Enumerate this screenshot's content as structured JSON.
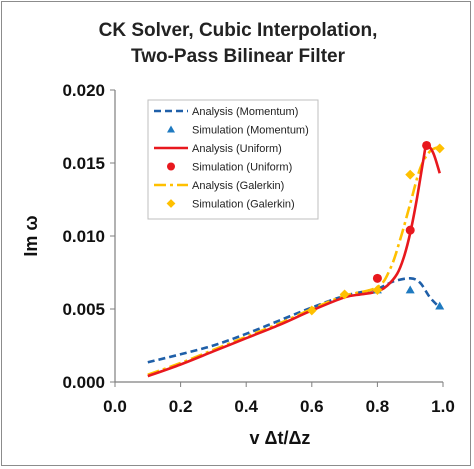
{
  "chart_data": {
    "type": "line",
    "title_lines": [
      "CK Solver, Cubic Interpolation,",
      "Two-Pass Bilinear Filter"
    ],
    "xlabel": "v Δt/Δz",
    "ylabel": "Im ω",
    "xlim": [
      0.0,
      1.0
    ],
    "ylim": [
      0.0,
      0.02
    ],
    "x_ticks": [
      "0.0",
      "0.2",
      "0.4",
      "0.6",
      "0.8",
      "1.0"
    ],
    "y_ticks": [
      "0.000",
      "0.005",
      "0.010",
      "0.015",
      "0.020"
    ],
    "grid": false,
    "legend_position": "upper-left-inside",
    "series": [
      {
        "name": "Analysis (Momentum)",
        "kind": "line",
        "style": "dashed",
        "color": "#1f5fa8",
        "x": [
          0.1,
          0.2,
          0.3,
          0.4,
          0.5,
          0.6,
          0.7,
          0.8,
          0.85,
          0.9,
          0.93,
          0.96,
          0.99
        ],
        "y": [
          0.00135,
          0.0019,
          0.0025,
          0.0033,
          0.0042,
          0.0051,
          0.0059,
          0.0064,
          0.0069,
          0.0071,
          0.0068,
          0.0058,
          0.0051
        ]
      },
      {
        "name": "Simulation (Momentum)",
        "kind": "marker",
        "marker": "triangle",
        "color": "#1f7ac0",
        "x": [
          0.8,
          0.9,
          0.99
        ],
        "y": [
          0.0063,
          0.0063,
          0.0052
        ]
      },
      {
        "name": "Analysis (Uniform)",
        "kind": "line",
        "style": "solid",
        "color": "#e8181e",
        "x": [
          0.1,
          0.2,
          0.3,
          0.4,
          0.5,
          0.6,
          0.7,
          0.75,
          0.8,
          0.83,
          0.86,
          0.88,
          0.9,
          0.92,
          0.94,
          0.95,
          0.97,
          0.99
        ],
        "y": [
          0.0004,
          0.0012,
          0.0021,
          0.003,
          0.0039,
          0.0049,
          0.0058,
          0.006,
          0.0062,
          0.0066,
          0.0074,
          0.0085,
          0.0102,
          0.0125,
          0.0152,
          0.0162,
          0.0157,
          0.0143
        ]
      },
      {
        "name": "Simulation (Uniform)",
        "kind": "marker",
        "marker": "circle",
        "color": "#e8181e",
        "x": [
          0.8,
          0.9,
          0.95
        ],
        "y": [
          0.0071,
          0.0104,
          0.0162
        ]
      },
      {
        "name": "Analysis (Galerkin)",
        "kind": "line",
        "style": "dashdot",
        "color": "#ffc000",
        "x": [
          0.1,
          0.2,
          0.3,
          0.4,
          0.5,
          0.6,
          0.7,
          0.8,
          0.84,
          0.87,
          0.9,
          0.93,
          0.96,
          0.99
        ],
        "y": [
          0.0005,
          0.0013,
          0.0022,
          0.0031,
          0.004,
          0.005,
          0.0059,
          0.0065,
          0.0078,
          0.0098,
          0.0122,
          0.0146,
          0.0158,
          0.0161
        ]
      },
      {
        "name": "Simulation (Galerkin)",
        "kind": "marker",
        "marker": "diamond",
        "color": "#ffc000",
        "x": [
          0.6,
          0.7,
          0.8,
          0.9,
          0.99
        ],
        "y": [
          0.0049,
          0.006,
          0.0063,
          0.0142,
          0.016
        ]
      }
    ]
  }
}
